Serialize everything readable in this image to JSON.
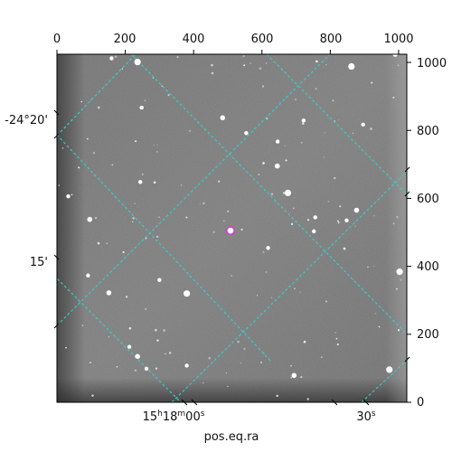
{
  "figure": {
    "xlabel": "pos.eq.ra",
    "top_ticks": [
      "0",
      "200",
      "400",
      "600",
      "800",
      "1000"
    ],
    "right_ticks": [
      "0",
      "200",
      "400",
      "600",
      "800",
      "1000"
    ],
    "left_ticks": [
      "-24°20'",
      "15'"
    ],
    "bottom_ticks": [
      {
        "main": "15",
        "h": "h",
        "mid": "18",
        "m": "m",
        "end": "00",
        "s": "s"
      },
      {
        "main": "30",
        "s": "s"
      }
    ],
    "colors": {
      "grid": "#35d0d0",
      "marker": "#d23bd2",
      "background_sky": "#767676"
    }
  },
  "chart_data": {
    "type": "scatter",
    "title": "",
    "xlabel": "pos.eq.ra",
    "ylabel": "",
    "xlim": [
      0,
      1024
    ],
    "ylim": [
      0,
      1024
    ],
    "x_ticks": [
      0,
      200,
      400,
      600,
      800,
      1000
    ],
    "y_ticks": [
      0,
      200,
      400,
      600,
      800,
      1000
    ],
    "grid": true,
    "series": [
      {
        "values": [
          {
            "x": 236,
            "y": 1001
          },
          {
            "x": 160,
            "y": 1012
          },
          {
            "x": 248,
            "y": 867
          },
          {
            "x": 485,
            "y": 837
          },
          {
            "x": 722,
            "y": 829
          },
          {
            "x": 862,
            "y": 988
          },
          {
            "x": 990,
            "y": 1024
          },
          {
            "x": 646,
            "y": 767
          },
          {
            "x": 33,
            "y": 606
          },
          {
            "x": 96,
            "y": 538
          },
          {
            "x": 676,
            "y": 616
          },
          {
            "x": 756,
            "y": 544
          },
          {
            "x": 877,
            "y": 565
          },
          {
            "x": 848,
            "y": 535
          },
          {
            "x": 752,
            "y": 503
          },
          {
            "x": 508,
            "y": 505
          },
          {
            "x": 618,
            "y": 454
          },
          {
            "x": 91,
            "y": 373
          },
          {
            "x": 152,
            "y": 322
          },
          {
            "x": 300,
            "y": 360
          },
          {
            "x": 380,
            "y": 320
          },
          {
            "x": 236,
            "y": 135
          },
          {
            "x": 262,
            "y": 99
          },
          {
            "x": 380,
            "y": 108
          },
          {
            "x": 694,
            "y": 79
          },
          {
            "x": 973,
            "y": 96
          },
          {
            "x": 244,
            "y": 648
          },
          {
            "x": 645,
            "y": 695
          },
          {
            "x": 554,
            "y": 792
          },
          {
            "x": 896,
            "y": 817
          },
          {
            "x": 1003,
            "y": 384
          },
          {
            "x": 212,
            "y": 163
          }
        ]
      }
    ],
    "annotations": [
      {
        "type": "circle-marker",
        "x": 508,
        "y": 505
      }
    ]
  }
}
